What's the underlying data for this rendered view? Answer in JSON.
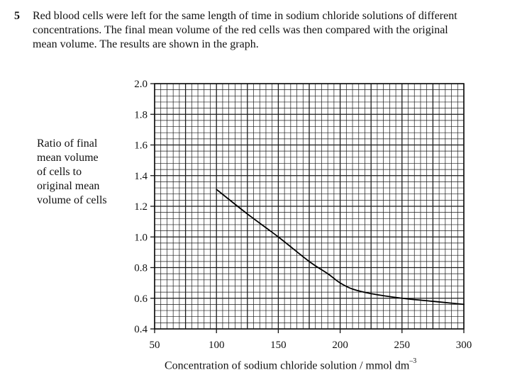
{
  "question": {
    "number": "5",
    "lines": [
      "Red blood cells were left for the same length of time in sodium chloride solutions of different",
      "concentrations.  The final mean volume of the red cells was then compared with the original",
      "mean volume.  The results are shown in the graph."
    ]
  },
  "chart_data": {
    "type": "line",
    "ylabel_lines": [
      "Ratio of final",
      "mean volume",
      "of cells to",
      "original mean",
      "volume of cells"
    ],
    "xlabel": "Concentration of sodium chloride solution / mmol dm",
    "xlabel_unit_exponent": "–3",
    "xlim": [
      50,
      300
    ],
    "ylim": [
      0.4,
      2.0
    ],
    "x_ticks": [
      "50",
      "100",
      "150",
      "200",
      "250",
      "300"
    ],
    "y_ticks": [
      "0.4",
      "0.6",
      "0.8",
      "1.0",
      "1.2",
      "1.4",
      "1.6",
      "1.8",
      "2.0"
    ],
    "grid": true,
    "series": [
      {
        "x": [
          100,
          125,
          150,
          175,
          190,
          200,
          210,
          225,
          250,
          275,
          300
        ],
        "y": [
          1.31,
          1.15,
          1.0,
          0.84,
          0.76,
          0.7,
          0.66,
          0.63,
          0.6,
          0.58,
          0.56
        ]
      }
    ]
  }
}
